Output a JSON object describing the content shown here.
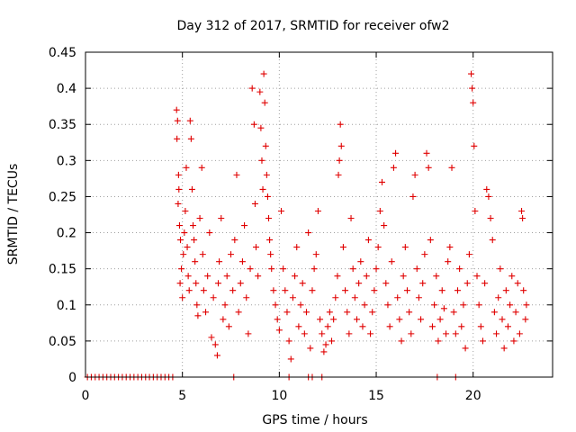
{
  "chart_data": {
    "type": "scatter",
    "title": "Day 312 of 2017, SRMTID for receiver ofw2",
    "xlabel": "GPS time / hours",
    "ylabel": "SRMTID / TECUs",
    "xlim": [
      0,
      24.1
    ],
    "ylim": [
      0,
      0.45
    ],
    "grid": true,
    "legend": "none",
    "marker": "plus",
    "series_color": "#e00000",
    "x_ticks": [
      0,
      5,
      10,
      15,
      20
    ],
    "x_tick_labels": [
      "0",
      "5",
      "10",
      "15",
      "20"
    ],
    "y_ticks": [
      0,
      0.05,
      0.1,
      0.15,
      0.2,
      0.25,
      0.3,
      0.35,
      0.4,
      0.45
    ],
    "y_tick_labels": [
      "0",
      "0.05",
      "0.1",
      "0.15",
      "0.2",
      "0.25",
      "0.3",
      "0.35",
      "0.4",
      "0.45"
    ],
    "series": [
      {
        "name": "SRMTID",
        "points": [
          [
            0.1,
            0
          ],
          [
            0.3,
            0
          ],
          [
            0.5,
            0
          ],
          [
            0.7,
            0
          ],
          [
            0.9,
            0
          ],
          [
            1.1,
            0
          ],
          [
            1.3,
            0
          ],
          [
            1.5,
            0
          ],
          [
            1.7,
            0
          ],
          [
            1.9,
            0
          ],
          [
            2.1,
            0
          ],
          [
            2.3,
            0
          ],
          [
            2.5,
            0
          ],
          [
            2.7,
            0
          ],
          [
            2.9,
            0
          ],
          [
            3.1,
            0
          ],
          [
            3.3,
            0
          ],
          [
            3.5,
            0
          ],
          [
            3.7,
            0
          ],
          [
            3.9,
            0
          ],
          [
            4.1,
            0
          ],
          [
            4.3,
            0
          ],
          [
            4.5,
            0
          ],
          [
            7.65,
            0
          ],
          [
            10.5,
            0
          ],
          [
            11.5,
            0
          ],
          [
            11.7,
            0
          ],
          [
            12.2,
            0
          ],
          [
            18.15,
            0
          ],
          [
            19.1,
            0
          ],
          [
            4.7,
            0.37
          ],
          [
            4.75,
            0.355
          ],
          [
            4.72,
            0.33
          ],
          [
            4.8,
            0.28
          ],
          [
            4.82,
            0.26
          ],
          [
            4.78,
            0.24
          ],
          [
            4.85,
            0.21
          ],
          [
            4.9,
            0.19
          ],
          [
            4.95,
            0.15
          ],
          [
            4.88,
            0.13
          ],
          [
            5.0,
            0.11
          ],
          [
            5.05,
            0.17
          ],
          [
            5.1,
            0.2
          ],
          [
            5.15,
            0.23
          ],
          [
            5.2,
            0.29
          ],
          [
            5.25,
            0.18
          ],
          [
            5.3,
            0.14
          ],
          [
            5.35,
            0.12
          ],
          [
            5.4,
            0.355
          ],
          [
            5.45,
            0.33
          ],
          [
            5.5,
            0.26
          ],
          [
            5.55,
            0.21
          ],
          [
            5.6,
            0.19
          ],
          [
            5.65,
            0.16
          ],
          [
            5.7,
            0.13
          ],
          [
            5.75,
            0.1
          ],
          [
            5.8,
            0.085
          ],
          [
            5.9,
            0.22
          ],
          [
            6.0,
            0.29
          ],
          [
            6.05,
            0.17
          ],
          [
            6.1,
            0.12
          ],
          [
            6.2,
            0.09
          ],
          [
            6.3,
            0.14
          ],
          [
            6.4,
            0.2
          ],
          [
            6.5,
            0.055
          ],
          [
            6.6,
            0.11
          ],
          [
            6.7,
            0.045
          ],
          [
            6.8,
            0.03
          ],
          [
            6.85,
            0.13
          ],
          [
            6.9,
            0.16
          ],
          [
            7.0,
            0.22
          ],
          [
            7.1,
            0.08
          ],
          [
            7.2,
            0.1
          ],
          [
            7.3,
            0.14
          ],
          [
            7.4,
            0.07
          ],
          [
            7.5,
            0.17
          ],
          [
            7.6,
            0.12
          ],
          [
            7.7,
            0.19
          ],
          [
            7.8,
            0.28
          ],
          [
            7.9,
            0.09
          ],
          [
            8.0,
            0.13
          ],
          [
            8.1,
            0.16
          ],
          [
            8.2,
            0.21
          ],
          [
            8.3,
            0.11
          ],
          [
            8.4,
            0.06
          ],
          [
            8.5,
            0.15
          ],
          [
            8.6,
            0.4
          ],
          [
            8.7,
            0.35
          ],
          [
            8.75,
            0.24
          ],
          [
            8.8,
            0.18
          ],
          [
            8.9,
            0.14
          ],
          [
            9.0,
            0.395
          ],
          [
            9.05,
            0.345
          ],
          [
            9.1,
            0.3
          ],
          [
            9.15,
            0.26
          ],
          [
            9.2,
            0.42
          ],
          [
            9.25,
            0.38
          ],
          [
            9.3,
            0.32
          ],
          [
            9.35,
            0.28
          ],
          [
            9.4,
            0.25
          ],
          [
            9.45,
            0.22
          ],
          [
            9.5,
            0.19
          ],
          [
            9.55,
            0.17
          ],
          [
            9.6,
            0.15
          ],
          [
            9.7,
            0.12
          ],
          [
            9.8,
            0.1
          ],
          [
            9.9,
            0.08
          ],
          [
            10.0,
            0.065
          ],
          [
            10.1,
            0.23
          ],
          [
            10.2,
            0.15
          ],
          [
            10.3,
            0.12
          ],
          [
            10.4,
            0.09
          ],
          [
            10.5,
            0.05
          ],
          [
            10.6,
            0.025
          ],
          [
            10.7,
            0.11
          ],
          [
            10.8,
            0.14
          ],
          [
            10.9,
            0.18
          ],
          [
            11.0,
            0.07
          ],
          [
            11.1,
            0.1
          ],
          [
            11.2,
            0.13
          ],
          [
            11.3,
            0.06
          ],
          [
            11.4,
            0.09
          ],
          [
            11.5,
            0.2
          ],
          [
            11.6,
            0.04
          ],
          [
            11.7,
            0.12
          ],
          [
            11.8,
            0.15
          ],
          [
            11.9,
            0.17
          ],
          [
            12.0,
            0.23
          ],
          [
            12.1,
            0.08
          ],
          [
            12.2,
            0.06
          ],
          [
            12.3,
            0.035
          ],
          [
            12.4,
            0.045
          ],
          [
            12.5,
            0.07
          ],
          [
            12.6,
            0.09
          ],
          [
            12.7,
            0.05
          ],
          [
            12.8,
            0.08
          ],
          [
            12.9,
            0.11
          ],
          [
            13.0,
            0.14
          ],
          [
            13.05,
            0.28
          ],
          [
            13.1,
            0.3
          ],
          [
            13.15,
            0.35
          ],
          [
            13.2,
            0.32
          ],
          [
            13.3,
            0.18
          ],
          [
            13.4,
            0.12
          ],
          [
            13.5,
            0.09
          ],
          [
            13.6,
            0.06
          ],
          [
            13.7,
            0.22
          ],
          [
            13.8,
            0.15
          ],
          [
            13.9,
            0.11
          ],
          [
            14.0,
            0.08
          ],
          [
            14.1,
            0.13
          ],
          [
            14.2,
            0.16
          ],
          [
            14.3,
            0.07
          ],
          [
            14.4,
            0.1
          ],
          [
            14.5,
            0.14
          ],
          [
            14.6,
            0.19
          ],
          [
            14.7,
            0.06
          ],
          [
            14.8,
            0.09
          ],
          [
            14.9,
            0.12
          ],
          [
            15.0,
            0.15
          ],
          [
            15.1,
            0.18
          ],
          [
            15.2,
            0.23
          ],
          [
            15.3,
            0.27
          ],
          [
            15.4,
            0.21
          ],
          [
            15.5,
            0.13
          ],
          [
            15.6,
            0.1
          ],
          [
            15.7,
            0.07
          ],
          [
            15.8,
            0.16
          ],
          [
            15.9,
            0.29
          ],
          [
            16.0,
            0.31
          ],
          [
            16.1,
            0.11
          ],
          [
            16.2,
            0.08
          ],
          [
            16.3,
            0.05
          ],
          [
            16.4,
            0.14
          ],
          [
            16.5,
            0.18
          ],
          [
            16.6,
            0.12
          ],
          [
            16.7,
            0.09
          ],
          [
            16.8,
            0.06
          ],
          [
            16.9,
            0.25
          ],
          [
            17.0,
            0.28
          ],
          [
            17.1,
            0.15
          ],
          [
            17.2,
            0.11
          ],
          [
            17.3,
            0.08
          ],
          [
            17.4,
            0.13
          ],
          [
            17.5,
            0.17
          ],
          [
            17.6,
            0.31
          ],
          [
            17.7,
            0.29
          ],
          [
            17.8,
            0.19
          ],
          [
            17.9,
            0.07
          ],
          [
            18.0,
            0.1
          ],
          [
            18.1,
            0.14
          ],
          [
            18.2,
            0.05
          ],
          [
            18.3,
            0.08
          ],
          [
            18.4,
            0.12
          ],
          [
            18.5,
            0.095
          ],
          [
            18.6,
            0.06
          ],
          [
            18.7,
            0.16
          ],
          [
            18.8,
            0.18
          ],
          [
            18.9,
            0.29
          ],
          [
            19.0,
            0.09
          ],
          [
            19.1,
            0.06
          ],
          [
            19.2,
            0.12
          ],
          [
            19.3,
            0.15
          ],
          [
            19.4,
            0.07
          ],
          [
            19.5,
            0.1
          ],
          [
            19.6,
            0.04
          ],
          [
            19.7,
            0.13
          ],
          [
            19.8,
            0.17
          ],
          [
            19.9,
            0.42
          ],
          [
            19.95,
            0.4
          ],
          [
            20.0,
            0.38
          ],
          [
            20.05,
            0.32
          ],
          [
            20.1,
            0.23
          ],
          [
            20.2,
            0.14
          ],
          [
            20.3,
            0.1
          ],
          [
            20.4,
            0.07
          ],
          [
            20.5,
            0.05
          ],
          [
            20.6,
            0.13
          ],
          [
            20.7,
            0.26
          ],
          [
            20.8,
            0.25
          ],
          [
            20.9,
            0.22
          ],
          [
            21.0,
            0.19
          ],
          [
            21.1,
            0.09
          ],
          [
            21.2,
            0.06
          ],
          [
            21.3,
            0.11
          ],
          [
            21.4,
            0.15
          ],
          [
            21.5,
            0.08
          ],
          [
            21.6,
            0.04
          ],
          [
            21.7,
            0.12
          ],
          [
            21.8,
            0.07
          ],
          [
            21.9,
            0.1
          ],
          [
            22.0,
            0.14
          ],
          [
            22.1,
            0.05
          ],
          [
            22.2,
            0.09
          ],
          [
            22.3,
            0.13
          ],
          [
            22.4,
            0.06
          ],
          [
            22.5,
            0.23
          ],
          [
            22.55,
            0.22
          ],
          [
            22.6,
            0.12
          ],
          [
            22.7,
            0.08
          ],
          [
            22.75,
            0.1
          ]
        ]
      }
    ]
  }
}
